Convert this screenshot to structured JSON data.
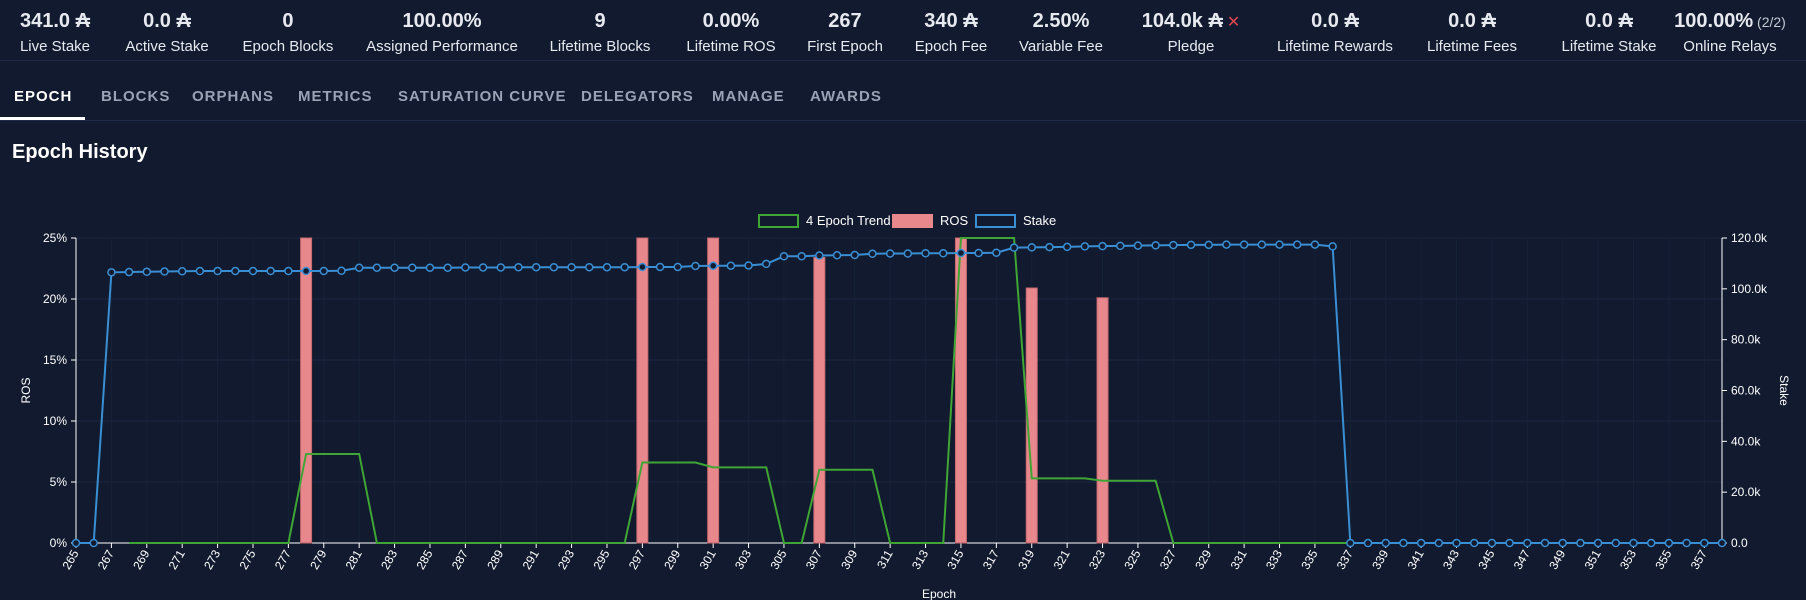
{
  "stats": [
    {
      "value": "341.0 ₳",
      "label": "Live Stake"
    },
    {
      "value": "0.0 ₳",
      "label": "Active Stake"
    },
    {
      "value": "0",
      "label": "Epoch Blocks"
    },
    {
      "value": "100.00%",
      "label": "Assigned Performance"
    },
    {
      "value": "9",
      "label": "Lifetime Blocks"
    },
    {
      "value": "0.00%",
      "label": "Lifetime ROS"
    },
    {
      "value": "267",
      "label": "First Epoch"
    },
    {
      "value": "340 ₳",
      "label": "Epoch Fee"
    },
    {
      "value": "2.50%",
      "label": "Variable Fee"
    },
    {
      "value": "104.0k ₳",
      "label": "Pledge",
      "flag": "✕"
    },
    {
      "value": "0.0 ₳",
      "label": "Lifetime Rewards"
    },
    {
      "value": "0.0 ₳",
      "label": "Lifetime Fees"
    },
    {
      "value": "0.0 ₳",
      "label": "Lifetime Stake"
    },
    {
      "value": "100.00%",
      "label": "Online Relays",
      "extra": "(2/2)"
    }
  ],
  "tabs": [
    "EPOCH",
    "BLOCKS",
    "ORPHANS",
    "METRICS",
    "SATURATION CURVE",
    "DELEGATORS",
    "MANAGE",
    "AWARDS"
  ],
  "active_tab": "EPOCH",
  "section_title": "Epoch History",
  "colors": {
    "background": "#111a2e",
    "trend": "#3fa535",
    "ros": "#e8888c",
    "stake": "#3a8fd4",
    "pledge_not_met": "#e0454f"
  },
  "chart_data": {
    "type": "bar",
    "xlabel": "Epoch",
    "ylabel": "ROS",
    "y2label": "Stake",
    "x_range": [
      265,
      358
    ],
    "x_ticks": [
      265,
      267,
      269,
      271,
      273,
      275,
      277,
      279,
      281,
      283,
      285,
      287,
      289,
      291,
      293,
      295,
      297,
      299,
      301,
      303,
      305,
      307,
      309,
      311,
      313,
      315,
      317,
      319,
      321,
      323,
      325,
      327,
      329,
      331,
      333,
      335,
      337,
      339,
      341,
      343,
      345,
      347,
      349,
      351,
      353,
      355,
      357
    ],
    "ylim": [
      0,
      25
    ],
    "y_ticks": [
      "0%",
      "5%",
      "10%",
      "15%",
      "20%",
      "25%"
    ],
    "y2lim": [
      0,
      120000
    ],
    "y2_ticks": [
      "0.0",
      "20.0k",
      "40.0k",
      "60.0k",
      "80.0k",
      "100.0k",
      "120.0k"
    ],
    "legend": [
      "4 Epoch Trend",
      "ROS",
      "Stake"
    ],
    "legend_position": "top-center",
    "grid": true,
    "series": [
      {
        "name": "ROS",
        "type": "bar",
        "axis": "left",
        "points": [
          [
            278,
            25
          ],
          [
            297,
            25
          ],
          [
            301,
            25
          ],
          [
            307,
            23.4
          ],
          [
            315,
            25
          ],
          [
            319,
            20.9
          ],
          [
            323,
            20.1
          ]
        ]
      },
      {
        "name": "4 Epoch Trend",
        "type": "line",
        "axis": "left",
        "points": [
          [
            268,
            0
          ],
          [
            269,
            0
          ],
          [
            270,
            0
          ],
          [
            271,
            0
          ],
          [
            272,
            0
          ],
          [
            273,
            0
          ],
          [
            274,
            0
          ],
          [
            275,
            0
          ],
          [
            276,
            0
          ],
          [
            277,
            0
          ],
          [
            278,
            7.3
          ],
          [
            279,
            7.3
          ],
          [
            280,
            7.3
          ],
          [
            281,
            7.3
          ],
          [
            282,
            0
          ],
          [
            283,
            0
          ],
          [
            284,
            0
          ],
          [
            285,
            0
          ],
          [
            286,
            0
          ],
          [
            287,
            0
          ],
          [
            288,
            0
          ],
          [
            289,
            0
          ],
          [
            290,
            0
          ],
          [
            291,
            0
          ],
          [
            292,
            0
          ],
          [
            293,
            0
          ],
          [
            294,
            0
          ],
          [
            295,
            0
          ],
          [
            296,
            0
          ],
          [
            297,
            6.6
          ],
          [
            298,
            6.6
          ],
          [
            299,
            6.6
          ],
          [
            300,
            6.6
          ],
          [
            301,
            6.2
          ],
          [
            302,
            6.2
          ],
          [
            303,
            6.2
          ],
          [
            304,
            6.2
          ],
          [
            305,
            0
          ],
          [
            306,
            0
          ],
          [
            307,
            6.0
          ],
          [
            308,
            6.0
          ],
          [
            309,
            6.0
          ],
          [
            310,
            6.0
          ],
          [
            311,
            0
          ],
          [
            312,
            0
          ],
          [
            313,
            0
          ],
          [
            314,
            0
          ],
          [
            315,
            25
          ],
          [
            316,
            25
          ],
          [
            317,
            25
          ],
          [
            318,
            25
          ],
          [
            319,
            5.3
          ],
          [
            320,
            5.3
          ],
          [
            321,
            5.3
          ],
          [
            322,
            5.3
          ],
          [
            323,
            5.1
          ],
          [
            324,
            5.1
          ],
          [
            325,
            5.1
          ],
          [
            326,
            5.1
          ],
          [
            327,
            0
          ],
          [
            328,
            0
          ],
          [
            329,
            0
          ],
          [
            330,
            0
          ],
          [
            331,
            0
          ],
          [
            332,
            0
          ],
          [
            333,
            0
          ],
          [
            334,
            0
          ],
          [
            335,
            0
          ],
          [
            336,
            0
          ],
          [
            337,
            0
          ]
        ]
      },
      {
        "name": "Stake",
        "type": "line",
        "axis": "right",
        "points": [
          [
            265,
            0
          ],
          [
            266,
            0
          ],
          [
            267,
            106500
          ],
          [
            268,
            106600
          ],
          [
            269,
            106700
          ],
          [
            270,
            106800
          ],
          [
            271,
            106900
          ],
          [
            272,
            107000
          ],
          [
            273,
            107000
          ],
          [
            274,
            107000
          ],
          [
            275,
            107000
          ],
          [
            276,
            107000
          ],
          [
            277,
            107000
          ],
          [
            278,
            107000
          ],
          [
            279,
            107000
          ],
          [
            280,
            107100
          ],
          [
            281,
            108300
          ],
          [
            282,
            108300
          ],
          [
            283,
            108300
          ],
          [
            284,
            108300
          ],
          [
            285,
            108300
          ],
          [
            286,
            108300
          ],
          [
            287,
            108400
          ],
          [
            288,
            108400
          ],
          [
            289,
            108400
          ],
          [
            290,
            108500
          ],
          [
            291,
            108500
          ],
          [
            292,
            108500
          ],
          [
            293,
            108500
          ],
          [
            294,
            108500
          ],
          [
            295,
            108500
          ],
          [
            296,
            108500
          ],
          [
            297,
            108600
          ],
          [
            298,
            108600
          ],
          [
            299,
            108600
          ],
          [
            300,
            109000
          ],
          [
            301,
            109100
          ],
          [
            302,
            109100
          ],
          [
            303,
            109200
          ],
          [
            304,
            109800
          ],
          [
            305,
            112800
          ],
          [
            306,
            112800
          ],
          [
            307,
            113100
          ],
          [
            308,
            113200
          ],
          [
            309,
            113300
          ],
          [
            310,
            113800
          ],
          [
            311,
            113900
          ],
          [
            312,
            113900
          ],
          [
            313,
            114000
          ],
          [
            314,
            114000
          ],
          [
            315,
            114100
          ],
          [
            316,
            114100
          ],
          [
            317,
            114200
          ],
          [
            318,
            116200
          ],
          [
            319,
            116300
          ],
          [
            320,
            116400
          ],
          [
            321,
            116500
          ],
          [
            322,
            116700
          ],
          [
            323,
            116800
          ],
          [
            324,
            116900
          ],
          [
            325,
            117000
          ],
          [
            326,
            117100
          ],
          [
            327,
            117200
          ],
          [
            328,
            117300
          ],
          [
            329,
            117300
          ],
          [
            330,
            117400
          ],
          [
            331,
            117400
          ],
          [
            332,
            117400
          ],
          [
            333,
            117400
          ],
          [
            334,
            117400
          ],
          [
            335,
            117400
          ],
          [
            336,
            116700
          ],
          [
            337,
            0
          ],
          [
            338,
            0
          ],
          [
            339,
            0
          ],
          [
            340,
            0
          ],
          [
            341,
            0
          ],
          [
            342,
            0
          ],
          [
            343,
            0
          ],
          [
            344,
            0
          ],
          [
            345,
            0
          ],
          [
            346,
            0
          ],
          [
            347,
            0
          ],
          [
            348,
            0
          ],
          [
            349,
            0
          ],
          [
            350,
            0
          ],
          [
            351,
            0
          ],
          [
            352,
            0
          ],
          [
            353,
            0
          ],
          [
            354,
            0
          ],
          [
            355,
            0
          ],
          [
            356,
            0
          ],
          [
            357,
            0
          ],
          [
            358,
            0
          ]
        ]
      }
    ]
  }
}
